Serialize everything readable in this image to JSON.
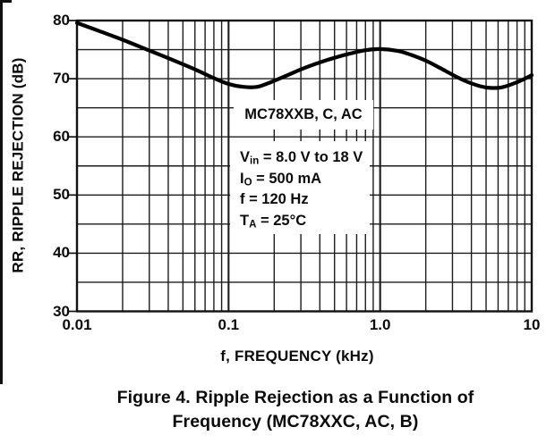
{
  "colors": {
    "line": "#000000",
    "grid": "#1c1c1c",
    "frame": "#111111",
    "text": "#0b0b0b",
    "background": "#ffffff"
  },
  "chart_data": {
    "type": "line",
    "title": "",
    "xlabel": "f, FREQUENCY (kHz)",
    "ylabel": "RR, RIPPLE REJECTION (dB)",
    "x_scale": "log",
    "xlim": [
      0.01,
      10
    ],
    "ylim": [
      30,
      80
    ],
    "y_grid_step": 5,
    "grid": "on",
    "legend_position": "none",
    "x_ticks": [
      {
        "value": 0.01,
        "label": "0.01"
      },
      {
        "value": 0.1,
        "label": "0.1"
      },
      {
        "value": 1.0,
        "label": "1.0"
      },
      {
        "value": 10,
        "label": "10"
      }
    ],
    "y_ticks": [
      {
        "value": 80,
        "label": "80"
      },
      {
        "value": 70,
        "label": "70"
      },
      {
        "value": 60,
        "label": "60"
      },
      {
        "value": 50,
        "label": "50"
      },
      {
        "value": 40,
        "label": "40"
      },
      {
        "value": 30,
        "label": "30"
      }
    ],
    "series": [
      {
        "name": "MC78XXB, C, AC",
        "color": "#000000",
        "points": [
          [
            0.01,
            79.6
          ],
          [
            0.014,
            78.2
          ],
          [
            0.02,
            76.7
          ],
          [
            0.029,
            75.0
          ],
          [
            0.042,
            73.3
          ],
          [
            0.06,
            71.6
          ],
          [
            0.08,
            70.1
          ],
          [
            0.1,
            69.1
          ],
          [
            0.125,
            68.6
          ],
          [
            0.155,
            68.6
          ],
          [
            0.19,
            69.4
          ],
          [
            0.24,
            70.5
          ],
          [
            0.3,
            71.6
          ],
          [
            0.4,
            72.8
          ],
          [
            0.5,
            73.6
          ],
          [
            0.63,
            74.3
          ],
          [
            0.8,
            74.9
          ],
          [
            1.0,
            75.1
          ],
          [
            1.3,
            74.8
          ],
          [
            1.6,
            74.1
          ],
          [
            2.0,
            73.1
          ],
          [
            2.5,
            71.8
          ],
          [
            3.2,
            70.3
          ],
          [
            4.0,
            69.2
          ],
          [
            5.0,
            68.5
          ],
          [
            6.3,
            68.5
          ],
          [
            8.0,
            69.4
          ],
          [
            10.0,
            70.6
          ]
        ]
      }
    ],
    "annotations": {
      "series_label": "MC78XXB, C, AC",
      "conditions": [
        {
          "pre": "V",
          "sub": "in",
          "post": " = 8.0 V to 18 V"
        },
        {
          "pre": "I",
          "sub": "O",
          "post": " = 500 mA"
        },
        {
          "pre": "f",
          "sub": "",
          "post": " = 120 Hz"
        },
        {
          "pre": "T",
          "sub": "A",
          "post": " = 25°C"
        }
      ]
    }
  },
  "caption": {
    "line1": "Figure 4. Ripple Rejection as a Function of",
    "line2": "Frequency (MC78XXC, AC, B)"
  }
}
